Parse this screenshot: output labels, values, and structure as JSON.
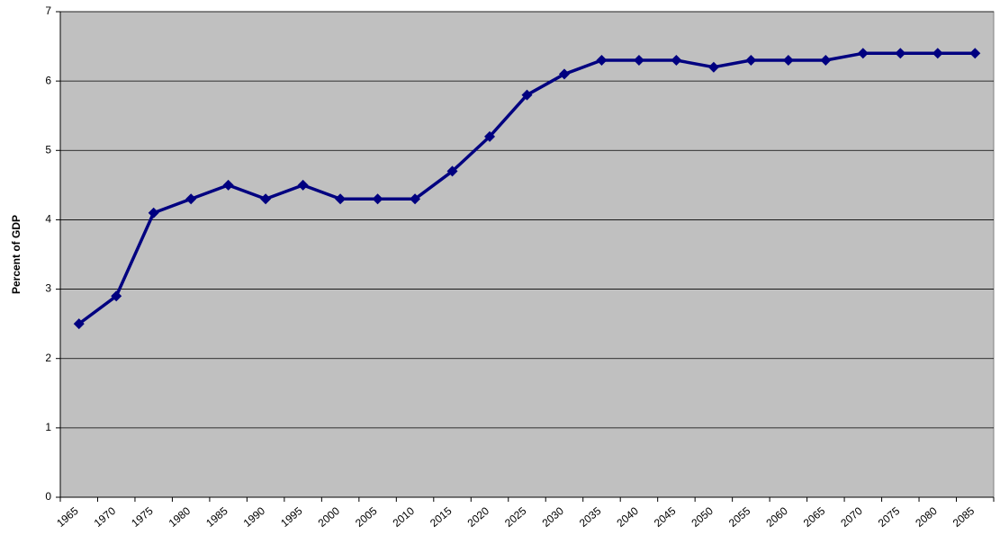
{
  "chart_data": {
    "type": "line",
    "y_label": "Percent of GDP",
    "categories": [
      "1965",
      "1970",
      "1975",
      "1980",
      "1985",
      "1990",
      "1995",
      "2000",
      "2005",
      "2010",
      "2015",
      "2020",
      "2025",
      "2030",
      "2035",
      "2040",
      "2045",
      "2050",
      "2055",
      "2060",
      "2065",
      "2070",
      "2075",
      "2080",
      "2085"
    ],
    "values": [
      2.5,
      2.9,
      4.1,
      4.3,
      4.5,
      4.3,
      4.5,
      4.3,
      4.3,
      4.3,
      4.7,
      5.2,
      5.8,
      6.1,
      6.3,
      6.3,
      6.3,
      6.2,
      6.3,
      6.3,
      6.3,
      6.4,
      6.4,
      6.4,
      6.4
    ],
    "color": "#000080",
    "ylim": [
      0,
      7
    ],
    "yticks": [
      0,
      1,
      2,
      3,
      4,
      5,
      6,
      7
    ],
    "grid": true
  }
}
